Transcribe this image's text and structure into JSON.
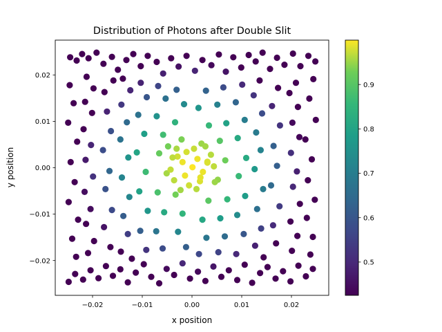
{
  "chart_data": {
    "type": "scatter",
    "title": "Distribution of Photons after Double Slit",
    "xlabel": "x position",
    "ylabel": "y position",
    "xlim": [
      -0.0275,
      0.0275
    ],
    "ylim": [
      -0.0275,
      0.0275
    ],
    "x_ticks": [
      -0.02,
      -0.01,
      0.0,
      0.01,
      0.02
    ],
    "x_tick_labels": [
      "−0.02",
      "−0.01",
      "0.00",
      "0.01",
      "0.02"
    ],
    "y_ticks": [
      -0.02,
      -0.01,
      0.0,
      0.01,
      0.02
    ],
    "y_tick_labels": [
      "−0.02",
      "−0.01",
      "0.00",
      "0.01",
      "0.02"
    ],
    "colorbar": {
      "colormap": "viridis",
      "min": 0.425,
      "max": 1.0,
      "ticks": [
        0.5,
        0.6,
        0.7,
        0.8,
        0.9
      ],
      "tick_labels": [
        "0.5",
        "0.6",
        "0.7",
        "0.8",
        "0.9"
      ]
    },
    "grid": false,
    "legend": "none",
    "series": [
      {
        "color_rule": "intensity = exp(-(x^2 + y^2) / (2 * 0.0175^2)) mapped through viridis",
        "points": [
          [
            -0.0245,
            0.0238
          ],
          [
            -0.0232,
            0.0231
          ],
          [
            -0.0221,
            0.0245
          ],
          [
            -0.0208,
            0.0236
          ],
          [
            -0.0192,
            0.0248
          ],
          [
            -0.0178,
            0.0224
          ],
          [
            -0.0161,
            0.0239
          ],
          [
            -0.0149,
            0.0211
          ],
          [
            -0.0132,
            0.0232
          ],
          [
            -0.0118,
            0.0245
          ],
          [
            -0.0103,
            0.0219
          ],
          [
            -0.0089,
            0.0241
          ],
          [
            -0.0071,
            0.0228
          ],
          [
            -0.0058,
            0.0203
          ],
          [
            -0.0042,
            0.0236
          ],
          [
            -0.0027,
            0.0218
          ],
          [
            -0.0011,
            0.0241
          ],
          [
            0.0006,
            0.0209
          ],
          [
            0.0021,
            0.0232
          ],
          [
            0.0039,
            0.0221
          ],
          [
            0.0054,
            0.0244
          ],
          [
            0.0068,
            0.0207
          ],
          [
            0.0083,
            0.0238
          ],
          [
            0.0099,
            0.0216
          ],
          [
            0.0114,
            0.0243
          ],
          [
            0.0128,
            0.0229
          ],
          [
            0.0142,
            0.0248
          ],
          [
            0.0157,
            0.0213
          ],
          [
            0.0171,
            0.0237
          ],
          [
            0.0186,
            0.0222
          ],
          [
            0.0203,
            0.0246
          ],
          [
            0.0218,
            0.0219
          ],
          [
            0.0234,
            0.0241
          ],
          [
            0.0248,
            0.0229
          ],
          [
            -0.0248,
            -0.0246
          ],
          [
            -0.0235,
            -0.0229
          ],
          [
            -0.0219,
            -0.0241
          ],
          [
            -0.0204,
            -0.0221
          ],
          [
            -0.0188,
            -0.0238
          ],
          [
            -0.0173,
            -0.0212
          ],
          [
            -0.0159,
            -0.0233
          ],
          [
            -0.0144,
            -0.0219
          ],
          [
            -0.0129,
            -0.0247
          ],
          [
            -0.0113,
            -0.0226
          ],
          [
            -0.0097,
            -0.0208
          ],
          [
            -0.0082,
            -0.0235
          ],
          [
            -0.0066,
            -0.0249
          ],
          [
            -0.0051,
            -0.0218
          ],
          [
            -0.0036,
            -0.0231
          ],
          [
            -0.0019,
            -0.0206
          ],
          [
            -0.0004,
            -0.0239
          ],
          [
            0.0012,
            -0.0224
          ],
          [
            0.0027,
            -0.0244
          ],
          [
            0.0043,
            -0.0213
          ],
          [
            0.0059,
            -0.0235
          ],
          [
            0.0074,
            -0.0221
          ],
          [
            0.0091,
            -0.0242
          ],
          [
            0.0106,
            -0.0209
          ],
          [
            0.0121,
            -0.0248
          ],
          [
            0.0137,
            -0.0227
          ],
          [
            0.0152,
            -0.0214
          ],
          [
            0.0168,
            -0.0239
          ],
          [
            0.0183,
            -0.0223
          ],
          [
            0.0198,
            -0.0245
          ],
          [
            0.0214,
            -0.0211
          ],
          [
            0.0229,
            -0.0234
          ],
          [
            0.0243,
            -0.0218
          ],
          [
            -0.0246,
            0.0178
          ],
          [
            -0.0238,
            0.0139
          ],
          [
            -0.0249,
            0.0097
          ],
          [
            -0.0231,
            0.0056
          ],
          [
            -0.0244,
            0.0012
          ],
          [
            -0.0236,
            -0.0031
          ],
          [
            -0.0248,
            -0.0074
          ],
          [
            -0.0229,
            -0.0112
          ],
          [
            -0.0241,
            -0.0153
          ],
          [
            -0.0233,
            -0.0192
          ],
          [
            0.0244,
            0.0191
          ],
          [
            0.0236,
            0.0149
          ],
          [
            0.0249,
            0.0103
          ],
          [
            0.0228,
            0.0061
          ],
          [
            0.0241,
            0.0018
          ],
          [
            0.0233,
            -0.0027
          ],
          [
            0.0247,
            -0.0069
          ],
          [
            0.0231,
            -0.0108
          ],
          [
            0.0243,
            -0.0149
          ],
          [
            0.0238,
            -0.0187
          ],
          [
            -0.0212,
            0.0196
          ],
          [
            -0.0198,
            0.0171
          ],
          [
            -0.0215,
            0.0142
          ],
          [
            -0.0201,
            0.0118
          ],
          [
            -0.0218,
            0.0083
          ],
          [
            -0.0203,
            0.0049
          ],
          [
            -0.0214,
            0.0017
          ],
          [
            -0.0199,
            -0.0019
          ],
          [
            -0.0216,
            -0.0052
          ],
          [
            -0.0204,
            -0.0089
          ],
          [
            -0.0213,
            -0.0121
          ],
          [
            -0.0197,
            -0.0158
          ],
          [
            -0.0209,
            -0.0184
          ],
          [
            0.0209,
            0.0183
          ],
          [
            0.0196,
            0.0161
          ],
          [
            0.0213,
            0.0131
          ],
          [
            0.0202,
            0.0097
          ],
          [
            0.0216,
            0.0066
          ],
          [
            0.0199,
            0.0032
          ],
          [
            0.0211,
            -0.0008
          ],
          [
            0.0203,
            -0.0041
          ],
          [
            0.0217,
            -0.0078
          ],
          [
            0.0198,
            -0.0116
          ],
          [
            0.0212,
            -0.0147
          ],
          [
            0.0201,
            -0.0179
          ],
          [
            -0.0176,
            0.0163
          ],
          [
            -0.0158,
            0.0188
          ],
          [
            -0.0171,
            0.0121
          ],
          [
            -0.0163,
            0.0079
          ],
          [
            -0.0179,
            0.0038
          ],
          [
            -0.0166,
            -0.0007
          ],
          [
            -0.0174,
            -0.0046
          ],
          [
            -0.0161,
            -0.0091
          ],
          [
            -0.0177,
            -0.0128
          ],
          [
            -0.0164,
            -0.0171
          ],
          [
            0.0173,
            0.0172
          ],
          [
            0.0161,
            0.0133
          ],
          [
            0.0177,
            0.0091
          ],
          [
            0.0164,
            0.0047
          ],
          [
            0.0171,
            0.0004
          ],
          [
            0.0159,
            -0.0038
          ],
          [
            0.0176,
            -0.0083
          ],
          [
            0.0163,
            -0.0124
          ],
          [
            0.0169,
            -0.0163
          ],
          [
            -0.0139,
            0.0192
          ],
          [
            -0.0124,
            0.0167
          ],
          [
            -0.0142,
            0.0136
          ],
          [
            -0.0131,
            0.0098
          ],
          [
            -0.0144,
            0.0061
          ],
          [
            -0.0128,
            0.0022
          ],
          [
            -0.0141,
            -0.0021
          ],
          [
            -0.0126,
            -0.0063
          ],
          [
            -0.0138,
            -0.0104
          ],
          [
            -0.0129,
            -0.0143
          ],
          [
            -0.0143,
            -0.0181
          ],
          [
            -0.0121,
            -0.0196
          ],
          [
            0.0136,
            0.0188
          ],
          [
            0.0124,
            0.0156
          ],
          [
            0.0141,
            0.0117
          ],
          [
            0.0129,
            0.0076
          ],
          [
            0.0138,
            0.0038
          ],
          [
            0.0126,
            -0.0003
          ],
          [
            0.0143,
            -0.0046
          ],
          [
            0.0131,
            -0.0089
          ],
          [
            0.0139,
            -0.0131
          ],
          [
            0.0127,
            -0.0168
          ],
          [
            0.0144,
            -0.0193
          ],
          [
            -0.0103,
            0.0183
          ],
          [
            -0.0091,
            0.0152
          ],
          [
            -0.0108,
            0.0114
          ],
          [
            -0.0096,
            0.0073
          ],
          [
            -0.0111,
            0.0033
          ],
          [
            -0.0093,
            -0.0009
          ],
          [
            -0.0106,
            -0.0051
          ],
          [
            -0.0089,
            -0.0093
          ],
          [
            -0.0104,
            -0.0136
          ],
          [
            -0.0092,
            -0.0177
          ],
          [
            0.0101,
            0.0179
          ],
          [
            0.0088,
            0.0141
          ],
          [
            0.0106,
            0.0103
          ],
          [
            0.0092,
            0.0064
          ],
          [
            0.0109,
            0.0021
          ],
          [
            0.0094,
            -0.0018
          ],
          [
            0.0107,
            -0.0061
          ],
          [
            0.0091,
            -0.0102
          ],
          [
            0.0104,
            -0.0143
          ],
          [
            0.0089,
            -0.0186
          ],
          [
            -0.0068,
            0.0176
          ],
          [
            -0.0053,
            0.0149
          ],
          [
            -0.0071,
            0.0111
          ],
          [
            -0.0058,
            0.0071
          ],
          [
            -0.0066,
            0.0031
          ],
          [
            -0.0051,
            -0.0012
          ],
          [
            -0.0069,
            -0.0053
          ],
          [
            -0.0056,
            -0.0096
          ],
          [
            -0.0072,
            -0.0137
          ],
          [
            -0.0059,
            -0.0174
          ],
          [
            0.0063,
            0.0173
          ],
          [
            0.0051,
            0.0136
          ],
          [
            0.0069,
            0.0096
          ],
          [
            0.0056,
            0.0058
          ],
          [
            0.0067,
            0.0016
          ],
          [
            0.0052,
            -0.0026
          ],
          [
            0.0071,
            -0.0068
          ],
          [
            0.0057,
            -0.0109
          ],
          [
            0.0066,
            -0.0148
          ],
          [
            0.0053,
            -0.0182
          ],
          [
            -0.0031,
            0.0168
          ],
          [
            -0.0016,
            0.0137
          ],
          [
            -0.0034,
            0.0098
          ],
          [
            -0.0021,
            0.0061
          ],
          [
            -0.0029,
            0.0024
          ],
          [
            -0.0014,
            -0.0017
          ],
          [
            -0.0033,
            -0.0058
          ],
          [
            -0.0019,
            -0.0099
          ],
          [
            -0.0028,
            -0.0138
          ],
          [
            -0.0012,
            -0.0171
          ],
          [
            0.0028,
            0.0166
          ],
          [
            0.0013,
            0.0129
          ],
          [
            0.0034,
            0.0091
          ],
          [
            0.0019,
            0.0052
          ],
          [
            0.0031,
            0.0013
          ],
          [
            0.0016,
            -0.0029
          ],
          [
            0.0033,
            -0.0071
          ],
          [
            0.0021,
            -0.0112
          ],
          [
            0.0029,
            -0.0151
          ],
          [
            0.0014,
            -0.0186
          ],
          [
            -0.0048,
            0.0046
          ],
          [
            -0.0039,
            0.0022
          ],
          [
            -0.0043,
            -0.0004
          ],
          [
            -0.0036,
            -0.0027
          ],
          [
            -0.0011,
            0.0034
          ],
          [
            0.0004,
            0.0041
          ],
          [
            0.0011,
            0.0019
          ],
          [
            0.0022,
            -0.0009
          ],
          [
            0.0038,
            0.0028
          ],
          [
            0.0044,
            0.0003
          ],
          [
            0.0046,
            -0.0031
          ],
          [
            0.0009,
            -0.0046
          ],
          [
            -0.0006,
            -0.0038
          ],
          [
            0.0027,
            0.0046
          ],
          [
            -0.0023,
            -0.0048
          ],
          [
            0.0001,
            0.0001
          ],
          [
            0.0017,
            -0.0021
          ],
          [
            -0.0019,
            0.0012
          ],
          [
            0.0031,
            0.0011
          ],
          [
            -0.0031,
            0.0041
          ]
        ]
      }
    ]
  }
}
